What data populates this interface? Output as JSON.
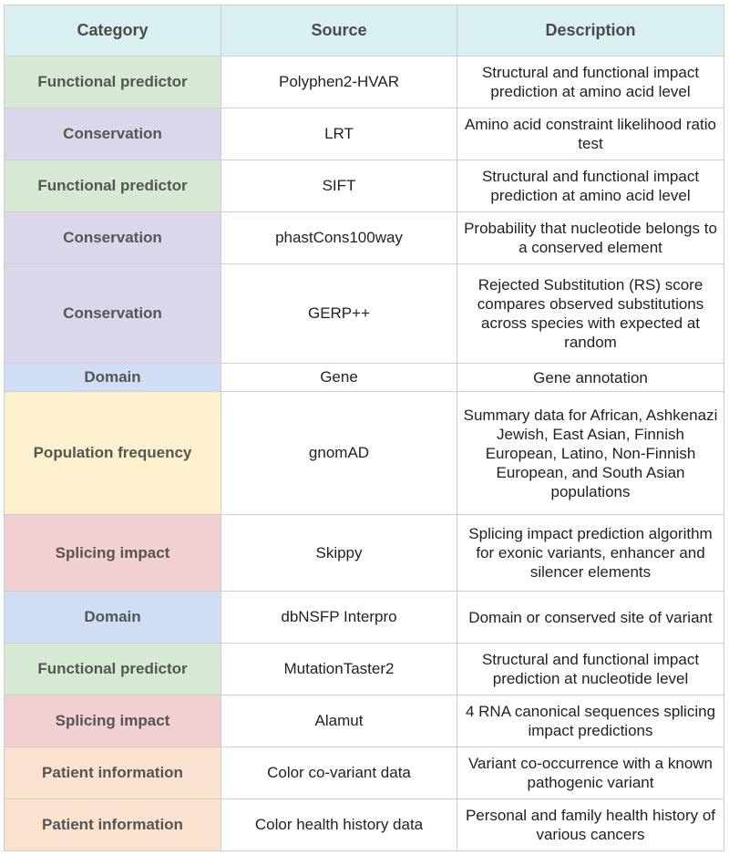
{
  "table": {
    "headers": [
      "Category",
      "Source",
      "Description"
    ],
    "rows": [
      {
        "category": "Functional predictor",
        "source": "Polyphen2-HVAR",
        "description": "Structural and functional impact prediction at amino acid level",
        "color": "#d6e9d3"
      },
      {
        "category": "Conservation",
        "source": "LRT",
        "description": "Amino acid constraint likelihood ratio test",
        "color": "#dcd6ea"
      },
      {
        "category": "Functional predictor",
        "source": "SIFT",
        "description": "Structural and functional impact prediction at amino acid level",
        "color": "#d6e9d3"
      },
      {
        "category": "Conservation",
        "source": "phastCons100way",
        "description": "Probability that nucleotide belongs to a conserved element",
        "color": "#dcd6ea"
      },
      {
        "category": "Conservation",
        "source": "GERP++",
        "description": "Rejected Substitution (RS) score compares observed substitutions across species with expected at random",
        "color": "#dcd6ea"
      },
      {
        "category": "Domain",
        "source": "Gene",
        "description": "Gene annotation",
        "color": "#cfdef4"
      },
      {
        "category": "Population frequency",
        "source": "gnomAD",
        "description": "Summary data for African, Ashkenazi Jewish, East Asian, Finnish European, Latino, Non-Finnish European, and South Asian populations",
        "color": "#fdf0cd"
      },
      {
        "category": "Splicing impact",
        "source": "Skippy",
        "description": "Splicing impact prediction algorithm for exonic variants, enhancer and silencer elements",
        "color": "#f2d0d1"
      },
      {
        "category": "Domain",
        "source": "dbNSFP Interpro",
        "description": "Domain or conserved site of variant",
        "color": "#cfdef4"
      },
      {
        "category": "Functional predictor",
        "source": "MutationTaster2",
        "description": "Structural and functional impact prediction at nucleotide level",
        "color": "#d6e9d3"
      },
      {
        "category": "Splicing impact",
        "source": "Alamut",
        "description": "4 RNA canonical sequences splicing impact predictions",
        "color": "#f2d0d1"
      },
      {
        "category": "Patient information",
        "source": "Color co-variant data",
        "description": "Variant co-occurrence with a known pathogenic variant",
        "color": "#fbe2cf"
      },
      {
        "category": "Patient information",
        "source": "Color health history data",
        "description": "Personal and family health history of various cancers",
        "color": "#fbe2cf"
      }
    ]
  }
}
